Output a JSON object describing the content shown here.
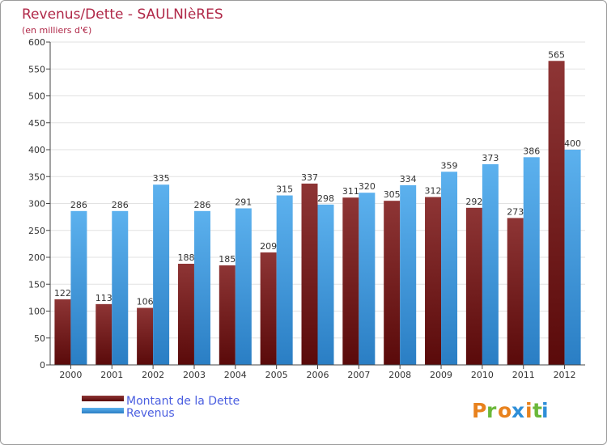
{
  "chart_data": {
    "type": "bar",
    "title": "Revenus/Dette - SAULNIèRES",
    "subtitle": "(en milliers d'€)",
    "categories": [
      "2000",
      "2001",
      "2002",
      "2003",
      "2004",
      "2005",
      "2006",
      "2007",
      "2008",
      "2009",
      "2010",
      "2011",
      "2012"
    ],
    "series": [
      {
        "name": "Montant de la Dette",
        "values": [
          122,
          113,
          106,
          188,
          185,
          209,
          337,
          311,
          305,
          312,
          292,
          273,
          565
        ]
      },
      {
        "name": "Revenus",
        "values": [
          286,
          286,
          335,
          286,
          291,
          315,
          298,
          320,
          334,
          359,
          373,
          386,
          400
        ]
      }
    ],
    "ylim": [
      0,
      600
    ],
    "yticks": [
      0,
      50,
      100,
      150,
      200,
      250,
      300,
      350,
      400,
      450,
      500,
      550,
      600
    ],
    "grid": true,
    "legend_position": "bottom-left",
    "colors": {
      "dette_dark": "#5a0a0a",
      "dette_light": "#8e3535",
      "revenus_dark": "#2a7ec4",
      "revenus_light": "#5cb1ee",
      "title": "#b02848",
      "legend_text": "#4a5ee0"
    }
  },
  "watermark": "Proxiti"
}
